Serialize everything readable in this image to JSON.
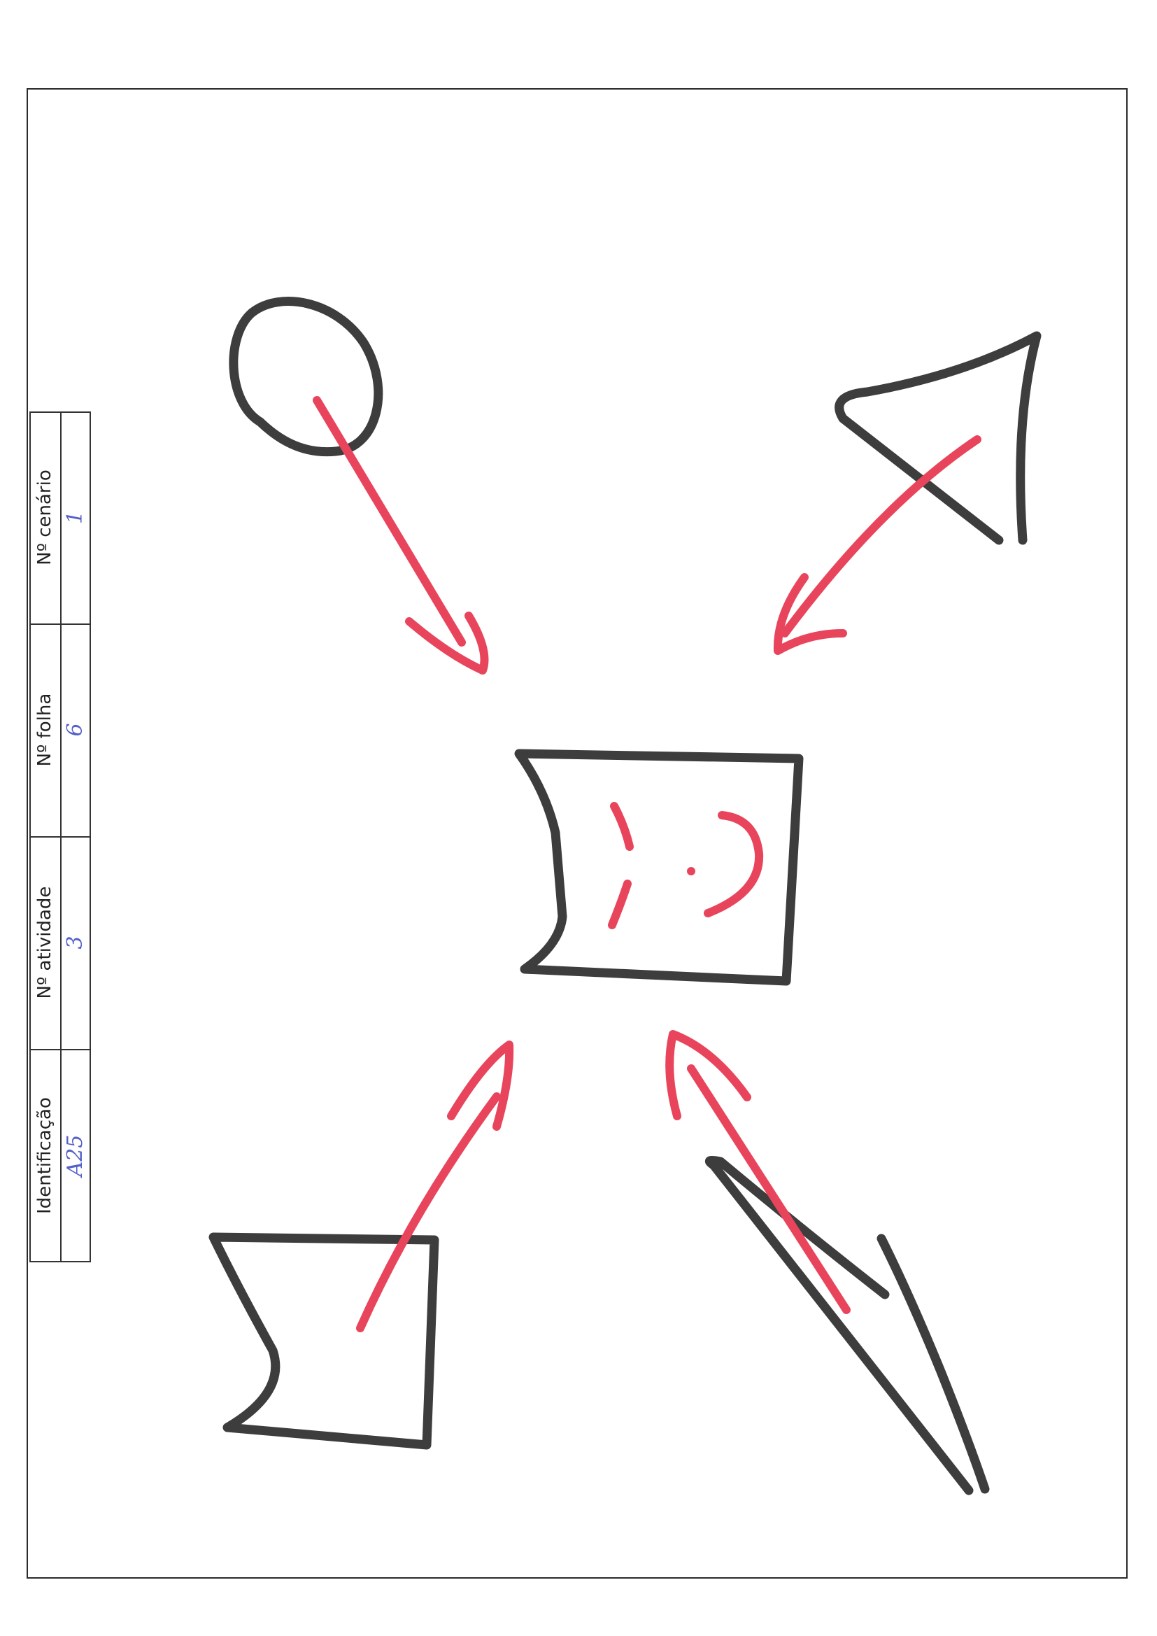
{
  "form": {
    "fields": [
      {
        "label": "Identificação",
        "value": "A25"
      },
      {
        "label": "Nº atividade",
        "value": "3"
      },
      {
        "label": "Nº folha",
        "value": "6"
      },
      {
        "label": "Nº cenário",
        "value": "1"
      }
    ]
  },
  "ink_colors": {
    "shapes": "#3d3d3d",
    "arrows": "#e8455c",
    "handwriting": "#5560c8"
  }
}
